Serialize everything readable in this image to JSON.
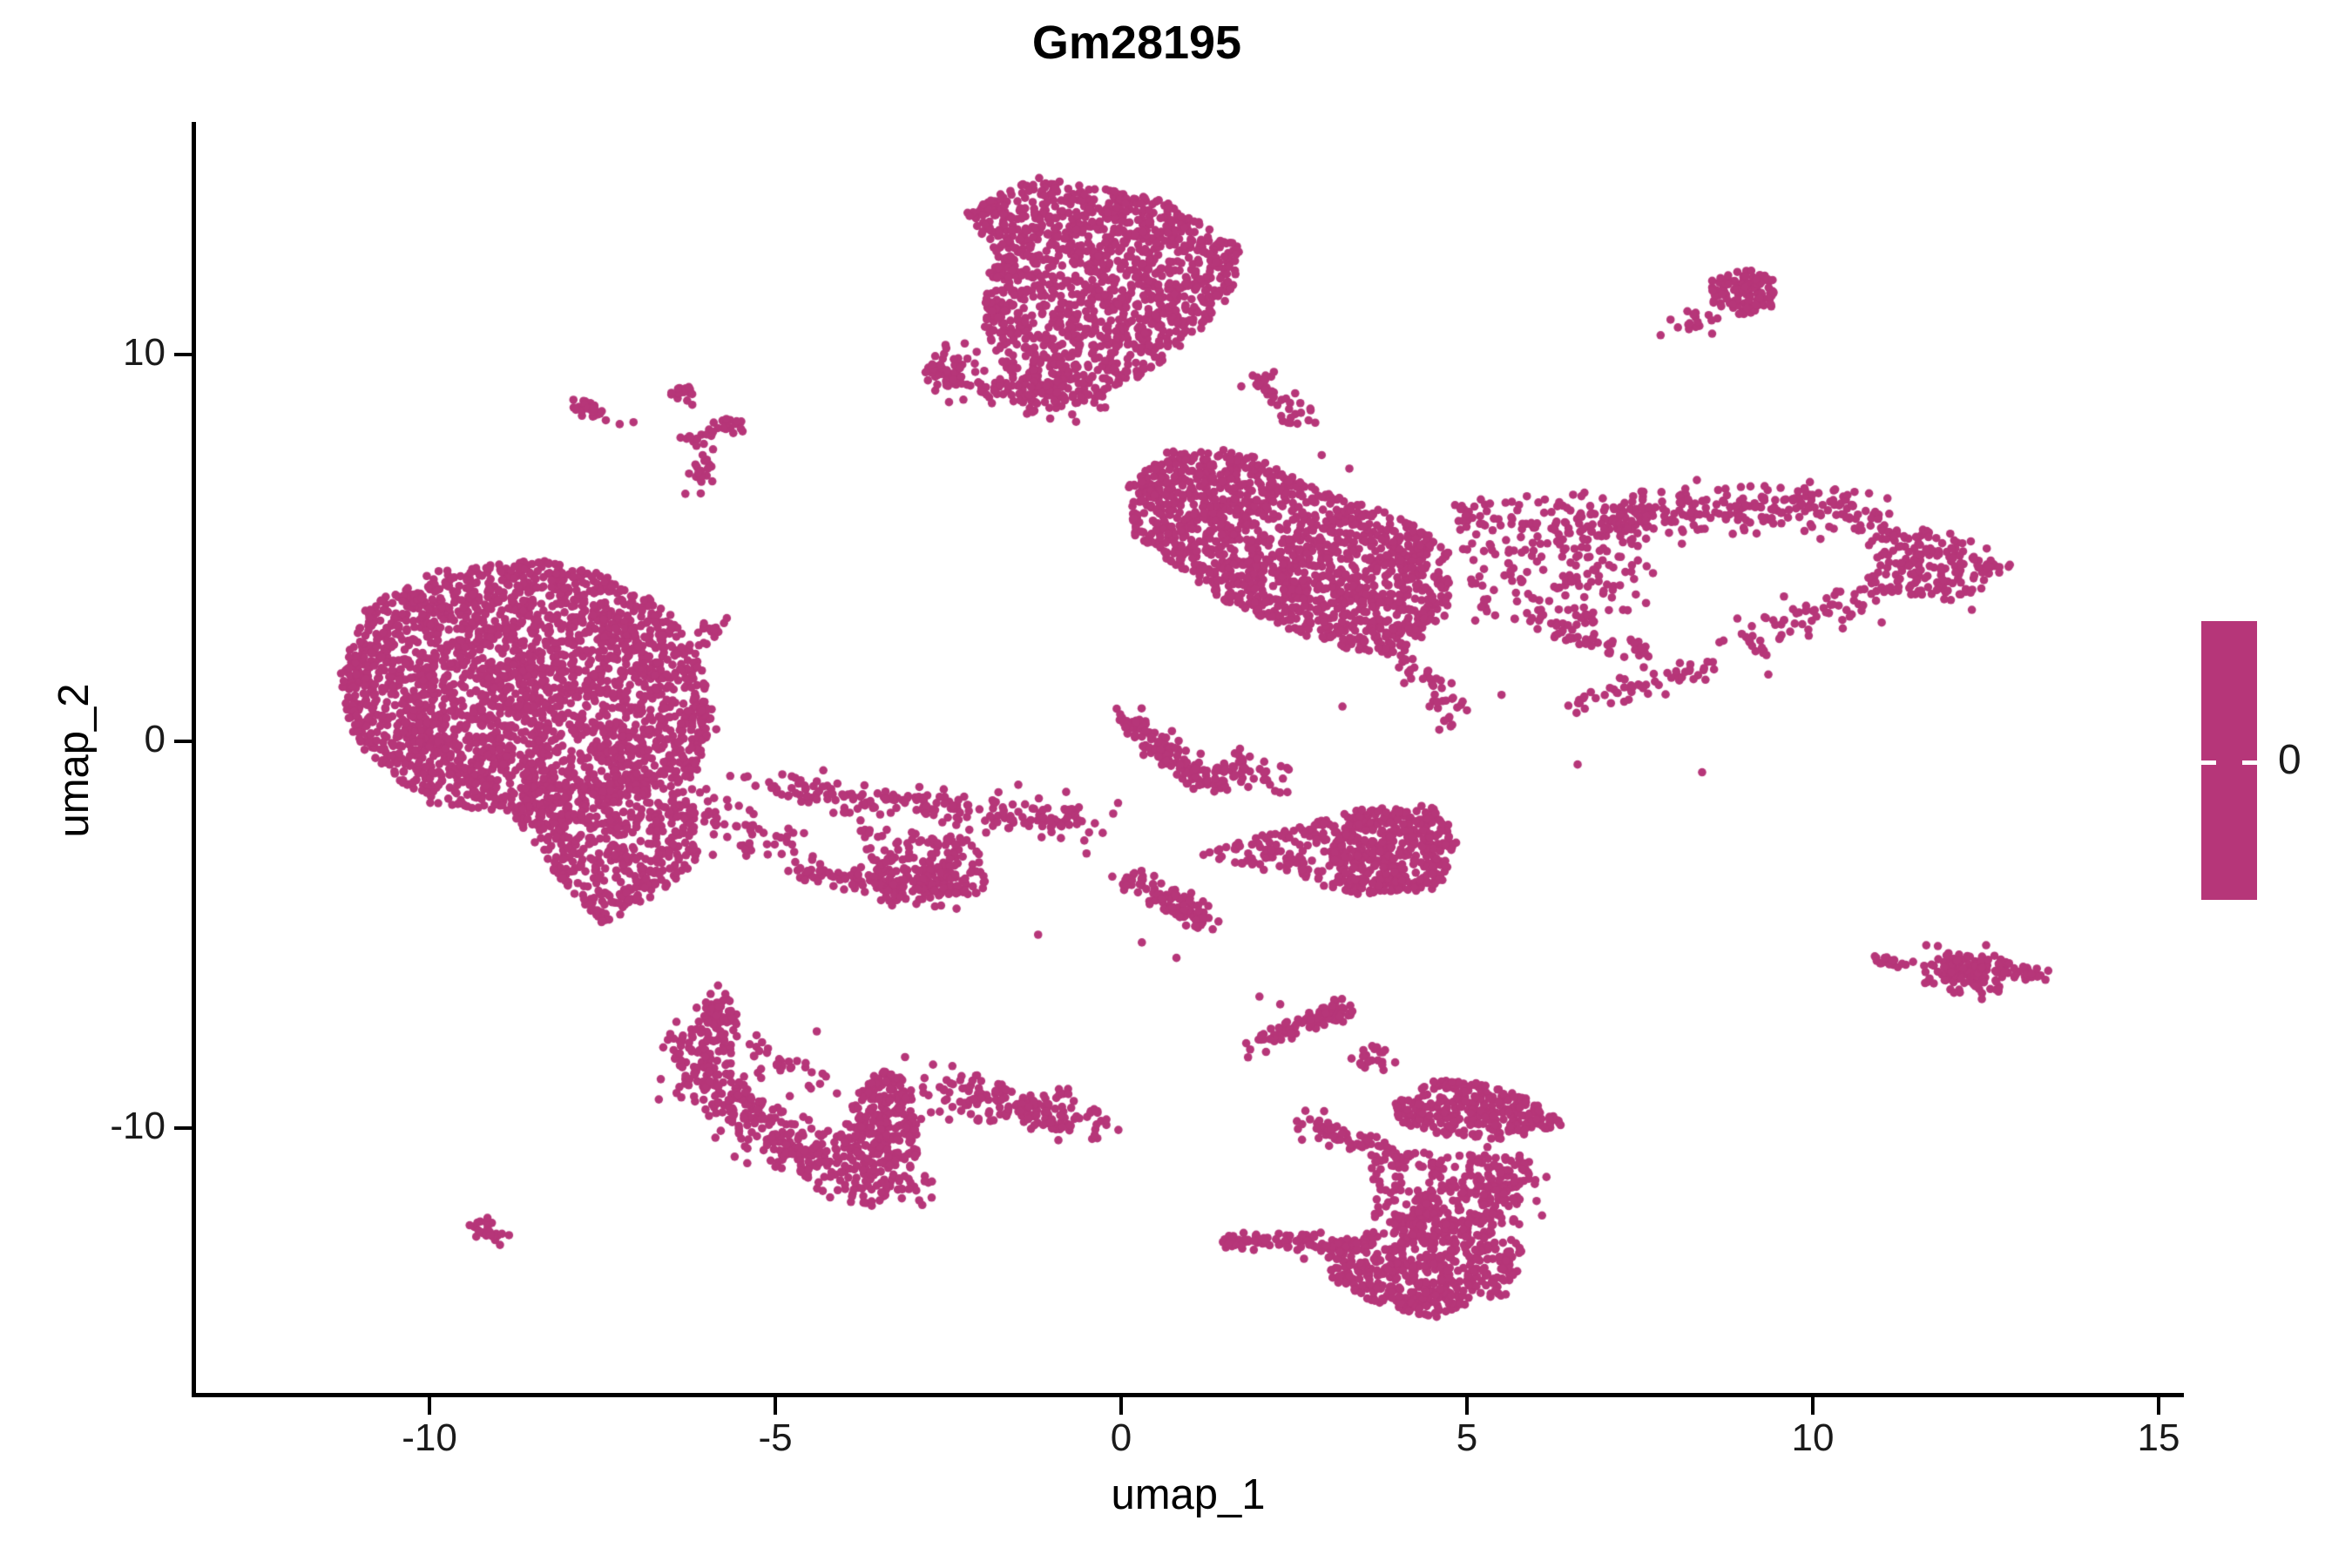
{
  "figure": {
    "title": "Gm28195"
  },
  "axes": {
    "x": {
      "label": "umap_1",
      "ticks": [
        "-10",
        "-5",
        "0",
        "5",
        "10",
        "15"
      ],
      "tick_values": [
        -10,
        -5,
        0,
        5,
        10,
        15
      ]
    },
    "y": {
      "label": "umap_2",
      "ticks": [
        "-10",
        "0",
        "10"
      ],
      "tick_values": [
        -10,
        0,
        10
      ]
    }
  },
  "legend": {
    "tick_label": "0",
    "bar_color": "#B63679"
  },
  "chart_data": {
    "type": "scatter",
    "title": "Gm28195",
    "xlabel": "umap_1",
    "ylabel": "umap_2",
    "x_ticks": [
      -10,
      -5,
      0,
      5,
      10,
      15
    ],
    "y_ticks": [
      -10,
      0,
      10
    ],
    "xlim": [
      -13.4,
      15.5
    ],
    "ylim": [
      -16.9,
      16.1
    ],
    "grid": false,
    "legend_position": "right",
    "background": "#FFFFFF",
    "axis_color": "#000000",
    "point_color": "#B63679",
    "point_radius_px": 4.8,
    "n_points_approx": 11400,
    "colorbar": {
      "labels": [
        "0"
      ],
      "uniform_color": "#B63679"
    },
    "clusters": [
      {
        "name": "top-center-main",
        "type": "poly",
        "pts": [
          [
            -2.3,
            13.7
          ],
          [
            -1.2,
            14.6
          ],
          [
            0.6,
            14.0
          ],
          [
            1.8,
            12.7
          ],
          [
            1.5,
            11.2
          ],
          [
            0.6,
            9.8
          ],
          [
            -0.5,
            8.6
          ],
          [
            -1.5,
            9.1
          ],
          [
            -2.0,
            10.7
          ],
          [
            -1.9,
            12.5
          ]
        ],
        "n": 1350
      },
      {
        "name": "top-center-left-knot",
        "type": "gauss",
        "c": [
          -2.45,
          9.55
        ],
        "s": [
          0.22,
          0.3
        ],
        "n": 60
      },
      {
        "name": "top-center-left-tail",
        "type": "strand",
        "path": [
          [
            -2.2,
            9.3
          ],
          [
            -1.4,
            8.9
          ],
          [
            -0.6,
            8.75
          ]
        ],
        "w": 0.22,
        "n": 70
      },
      {
        "name": "top-center-right-chain",
        "type": "strand",
        "path": [
          [
            1.9,
            9.5
          ],
          [
            2.3,
            8.9
          ],
          [
            2.7,
            8.0
          ]
        ],
        "w": 0.13,
        "n": 40
      },
      {
        "name": "mid-right-main",
        "type": "poly",
        "pts": [
          [
            0.1,
            6.6
          ],
          [
            0.7,
            7.6
          ],
          [
            1.8,
            7.5
          ],
          [
            3.0,
            6.4
          ],
          [
            4.2,
            5.7
          ],
          [
            4.8,
            4.8
          ],
          [
            4.7,
            3.2
          ],
          [
            4.0,
            2.1
          ],
          [
            2.8,
            2.6
          ],
          [
            1.4,
            3.7
          ],
          [
            0.2,
            5.3
          ]
        ],
        "n": 1500
      },
      {
        "name": "mid-right-sparse",
        "type": "poly",
        "pts": [
          [
            4.8,
            6.2
          ],
          [
            6.3,
            6.6
          ],
          [
            7.7,
            6.0
          ],
          [
            7.7,
            3.5
          ],
          [
            6.3,
            2.8
          ],
          [
            5.1,
            3.0
          ]
        ],
        "n": 240
      },
      {
        "name": "mid-right-bottom-tail",
        "type": "strand",
        "path": [
          [
            4.0,
            2.1
          ],
          [
            4.6,
            1.3
          ],
          [
            4.8,
            0.6
          ]
        ],
        "w": 0.15,
        "n": 40
      },
      {
        "name": "right-wing-top",
        "type": "strand",
        "path": [
          [
            6.4,
            5.3
          ],
          [
            8.0,
            5.9
          ],
          [
            9.7,
            6.1
          ],
          [
            10.8,
            5.8
          ]
        ],
        "w": 0.32,
        "n": 260
      },
      {
        "name": "right-wing-knot",
        "type": "poly",
        "pts": [
          [
            10.8,
            5.8
          ],
          [
            12.2,
            5.3
          ],
          [
            12.9,
            4.6
          ],
          [
            12.2,
            3.6
          ],
          [
            10.8,
            3.9
          ]
        ],
        "n": 190
      },
      {
        "name": "right-wing-lower-tail",
        "type": "strand",
        "path": [
          [
            10.7,
            3.8
          ],
          [
            9.6,
            3.0
          ],
          [
            9.0,
            2.4
          ]
        ],
        "w": 0.25,
        "n": 70
      },
      {
        "name": "right-wing-streak1",
        "type": "strand",
        "path": [
          [
            6.3,
            2.8
          ],
          [
            7.6,
            2.3
          ]
        ],
        "w": 0.14,
        "n": 45
      },
      {
        "name": "right-wing-streak2",
        "type": "strand",
        "path": [
          [
            6.6,
            0.9
          ],
          [
            7.6,
            1.5
          ],
          [
            8.5,
            1.9
          ]
        ],
        "w": 0.14,
        "n": 55
      },
      {
        "name": "left-main",
        "type": "poly",
        "pts": [
          [
            -11.3,
            1.7
          ],
          [
            -10.9,
            3.5
          ],
          [
            -9.9,
            4.4
          ],
          [
            -8.4,
            4.7
          ],
          [
            -7.4,
            4.3
          ],
          [
            -6.6,
            3.5
          ],
          [
            -6.1,
            2.2
          ],
          [
            -5.85,
            0.3
          ],
          [
            -6.2,
            -1.0
          ],
          [
            -7.4,
            -1.7
          ],
          [
            -8.6,
            -1.9
          ],
          [
            -9.9,
            -1.7
          ],
          [
            -10.8,
            -0.6
          ],
          [
            -11.2,
            0.5
          ]
        ],
        "n": 2600
      },
      {
        "name": "left-lower-lobe",
        "type": "poly",
        "pts": [
          [
            -8.9,
            -1.7
          ],
          [
            -6.2,
            -1.5
          ],
          [
            -6.1,
            -3.1
          ],
          [
            -6.9,
            -4.2
          ],
          [
            -7.5,
            -4.7
          ],
          [
            -8.1,
            -3.6
          ]
        ],
        "n": 430
      },
      {
        "name": "left-upper-strand",
        "type": "strand",
        "path": [
          [
            -6.9,
            1.5
          ],
          [
            -6.3,
            2.4
          ],
          [
            -5.7,
            3.2
          ]
        ],
        "w": 0.12,
        "n": 35
      },
      {
        "name": "left-right-strand",
        "type": "strand",
        "path": [
          [
            -6.5,
            -1.2
          ],
          [
            -5.6,
            -2.3
          ],
          [
            -4.9,
            -2.9
          ]
        ],
        "w": 0.25,
        "n": 70
      },
      {
        "name": "bridge-band",
        "type": "strand",
        "path": [
          [
            -5.1,
            -1.1
          ],
          [
            -3.5,
            -1.55
          ],
          [
            -1.9,
            -1.8
          ],
          [
            -0.3,
            -2.0
          ]
        ],
        "w": 0.22,
        "n": 210
      },
      {
        "name": "bridge-cloud",
        "type": "poly",
        "pts": [
          [
            -3.8,
            -2.2
          ],
          [
            -2.1,
            -2.5
          ],
          [
            -1.9,
            -3.9
          ],
          [
            -3.5,
            -4.3
          ]
        ],
        "n": 200
      },
      {
        "name": "bridge-lower-streak",
        "type": "strand",
        "path": [
          [
            -4.6,
            -3.3
          ],
          [
            -3.4,
            -3.7
          ],
          [
            -2.3,
            -4.05
          ]
        ],
        "w": 0.18,
        "n": 90
      },
      {
        "name": "center-streak",
        "type": "strand",
        "path": [
          [
            -0.05,
            0.75
          ],
          [
            0.6,
            -0.2
          ],
          [
            1.25,
            -1.2
          ]
        ],
        "w": 0.12,
        "n": 130
      },
      {
        "name": "center-hook",
        "type": "gauss",
        "c": [
          1.65,
          -0.8
        ],
        "s": [
          0.3,
          0.28
        ],
        "n": 60
      },
      {
        "name": "center-v-sparse",
        "type": "poly",
        "pts": [
          [
            1.1,
            -2.9
          ],
          [
            3.4,
            -1.75
          ],
          [
            3.4,
            -3.95
          ]
        ],
        "n": 150
      },
      {
        "name": "center-right-blob",
        "type": "poly",
        "pts": [
          [
            3.4,
            -1.75
          ],
          [
            4.6,
            -1.65
          ],
          [
            4.85,
            -2.6
          ],
          [
            4.6,
            -3.85
          ],
          [
            3.4,
            -3.95
          ],
          [
            3.0,
            -2.9
          ]
        ],
        "n": 420
      },
      {
        "name": "center-lower-streak",
        "type": "strand",
        "path": [
          [
            0.1,
            -3.5
          ],
          [
            0.7,
            -4.1
          ],
          [
            1.3,
            -4.75
          ]
        ],
        "w": 0.14,
        "n": 110
      },
      {
        "name": "crescent-knot",
        "type": "gauss",
        "c": [
          -5.85,
          -6.95
        ],
        "s": [
          0.15,
          0.3
        ],
        "n": 50
      },
      {
        "name": "crescent-arc",
        "type": "strand",
        "path": [
          [
            -5.9,
            -7.3
          ],
          [
            -6.1,
            -8.3
          ],
          [
            -5.7,
            -9.3
          ],
          [
            -4.95,
            -10.2
          ],
          [
            -4.2,
            -10.9
          ],
          [
            -3.4,
            -11.5
          ],
          [
            -3.05,
            -11.8
          ]
        ],
        "w": 0.3,
        "n": 430
      },
      {
        "name": "crescent-sail",
        "type": "poly",
        "pts": [
          [
            -3.6,
            -8.4
          ],
          [
            -3.05,
            -8.8
          ],
          [
            -2.9,
            -10.7
          ],
          [
            -3.55,
            -11.2
          ],
          [
            -4.1,
            -10.2
          ]
        ],
        "n": 260
      },
      {
        "name": "crescent-inner-chain",
        "type": "strand",
        "path": [
          [
            -5.4,
            -8.0
          ],
          [
            -4.8,
            -8.5
          ],
          [
            -4.3,
            -8.8
          ]
        ],
        "w": 0.18,
        "n": 30
      },
      {
        "name": "tiny-dash-bottom-left",
        "type": "strand",
        "path": [
          [
            -9.35,
            -12.5
          ],
          [
            -8.9,
            -12.95
          ]
        ],
        "w": 0.1,
        "n": 26
      },
      {
        "name": "bottom-center-band",
        "type": "strand",
        "path": [
          [
            -2.6,
            -9.0
          ],
          [
            -1.4,
            -9.5
          ],
          [
            -0.3,
            -9.9
          ]
        ],
        "w": 0.28,
        "n": 170
      },
      {
        "name": "bottom-right-top-arc",
        "type": "strand",
        "path": [
          [
            1.9,
            -7.95
          ],
          [
            2.5,
            -7.4
          ],
          [
            3.1,
            -7.0
          ]
        ],
        "w": 0.1,
        "n": 70
      },
      {
        "name": "bottom-right-top-knot",
        "type": "gauss",
        "c": [
          3.1,
          -6.95
        ],
        "s": [
          0.14,
          0.18
        ],
        "n": 28
      },
      {
        "name": "bottom-right-chain",
        "type": "gauss",
        "c": [
          3.6,
          -8.2
        ],
        "s": [
          0.14,
          0.2
        ],
        "n": 20
      },
      {
        "name": "bottom-right-upper-band",
        "type": "poly",
        "pts": [
          [
            3.9,
            -9.4
          ],
          [
            4.55,
            -8.75
          ],
          [
            5.3,
            -8.85
          ],
          [
            6.1,
            -9.4
          ],
          [
            6.4,
            -9.9
          ],
          [
            5.6,
            -10.3
          ],
          [
            4.7,
            -10.2
          ],
          [
            4.05,
            -9.9
          ]
        ],
        "n": 300
      },
      {
        "name": "bottom-right-left-streak",
        "type": "strand",
        "path": [
          [
            2.65,
            -9.85
          ],
          [
            3.2,
            -10.2
          ],
          [
            3.75,
            -10.5
          ]
        ],
        "w": 0.14,
        "n": 60
      },
      {
        "name": "bottom-right-mid-scatter",
        "type": "poly",
        "pts": [
          [
            3.6,
            -10.6
          ],
          [
            5.8,
            -10.7
          ],
          [
            5.8,
            -12.5
          ],
          [
            3.6,
            -12.5
          ]
        ],
        "n": 250
      },
      {
        "name": "bottom-right-long-streak",
        "type": "strand",
        "path": [
          [
            1.5,
            -12.9
          ],
          [
            2.3,
            -12.95
          ],
          [
            3.15,
            -13.0
          ]
        ],
        "w": 0.12,
        "n": 80
      },
      {
        "name": "bottom-right-main-blob",
        "type": "poly",
        "pts": [
          [
            2.9,
            -13.0
          ],
          [
            4.2,
            -12.35
          ],
          [
            5.3,
            -12.35
          ],
          [
            5.85,
            -13.2
          ],
          [
            5.6,
            -14.3
          ],
          [
            4.55,
            -14.9
          ],
          [
            3.5,
            -14.5
          ],
          [
            3.0,
            -13.8
          ]
        ],
        "n": 520
      },
      {
        "name": "bottom-right-right-knot",
        "type": "gauss",
        "c": [
          5.5,
          -11.3
        ],
        "s": [
          0.25,
          0.35
        ],
        "n": 70
      },
      {
        "name": "top-left-dash",
        "type": "strand",
        "path": [
          [
            -7.95,
            8.7
          ],
          [
            -7.5,
            8.5
          ]
        ],
        "w": 0.09,
        "n": 26
      },
      {
        "name": "top-left-knot-a",
        "type": "gauss",
        "c": [
          -6.35,
          9.05
        ],
        "s": [
          0.13,
          0.1
        ],
        "n": 18
      },
      {
        "name": "top-left-knot-b",
        "type": "gauss",
        "c": [
          -5.7,
          8.2
        ],
        "s": [
          0.12,
          0.12
        ],
        "n": 16
      },
      {
        "name": "top-left-knot-c",
        "type": "gauss",
        "c": [
          -6.15,
          7.85
        ],
        "s": [
          0.12,
          0.1
        ],
        "n": 14
      },
      {
        "name": "top-left-knot-d",
        "type": "gauss",
        "c": [
          -6.05,
          6.95
        ],
        "s": [
          0.1,
          0.2
        ],
        "n": 18
      },
      {
        "name": "top-right-blob",
        "type": "poly",
        "pts": [
          [
            8.5,
            11.9
          ],
          [
            9.1,
            12.25
          ],
          [
            9.5,
            11.85
          ],
          [
            9.4,
            11.2
          ],
          [
            8.9,
            11.0
          ],
          [
            8.5,
            11.35
          ]
        ],
        "n": 130
      },
      {
        "name": "top-right-tail-knot",
        "type": "gauss",
        "c": [
          8.3,
          10.9
        ],
        "s": [
          0.12,
          0.12
        ],
        "n": 15
      },
      {
        "name": "right-streak-dashes",
        "type": "strand",
        "path": [
          [
            10.9,
            -5.65
          ],
          [
            11.35,
            -5.75
          ]
        ],
        "w": 0.07,
        "n": 16
      },
      {
        "name": "right-streak-knot",
        "type": "gauss",
        "c": [
          12.25,
          -6.0
        ],
        "s": [
          0.28,
          0.3
        ],
        "n": 120
      },
      {
        "name": "right-streak-right",
        "type": "strand",
        "path": [
          [
            12.6,
            -5.85
          ],
          [
            13.3,
            -6.1
          ]
        ],
        "w": 0.12,
        "n": 45
      }
    ],
    "outliers": [
      [
        -7.45,
        8.3
      ],
      [
        -7.25,
        8.2
      ],
      [
        -7.05,
        8.25
      ],
      [
        -6.2,
        8.7
      ],
      [
        -5.9,
        8.0
      ],
      [
        -5.9,
        7.55
      ],
      [
        -6.05,
        7.4
      ],
      [
        -6.3,
        6.4
      ],
      [
        8.05,
        10.7
      ],
      [
        7.8,
        10.5
      ],
      [
        11.45,
        -5.7
      ],
      [
        11.75,
        -5.8
      ],
      [
        2.9,
        7.4
      ],
      [
        3.3,
        7.05
      ],
      [
        3.2,
        0.9
      ],
      [
        4.6,
        0.3
      ],
      [
        5.5,
        1.2
      ],
      [
        6.6,
        -0.6
      ],
      [
        8.4,
        -0.8
      ],
      [
        2.0,
        -6.6
      ],
      [
        2.3,
        -6.8
      ],
      [
        -3.2,
        -9.5
      ],
      [
        -3.5,
        -9.25
      ],
      [
        -0.5,
        -2.9
      ],
      [
        -1.2,
        -5.0
      ],
      [
        0.3,
        -5.2
      ],
      [
        12.3,
        3.4
      ],
      [
        5.0,
        0.8
      ],
      [
        0.8,
        -5.6
      ],
      [
        -4.4,
        -7.5
      ]
    ]
  }
}
